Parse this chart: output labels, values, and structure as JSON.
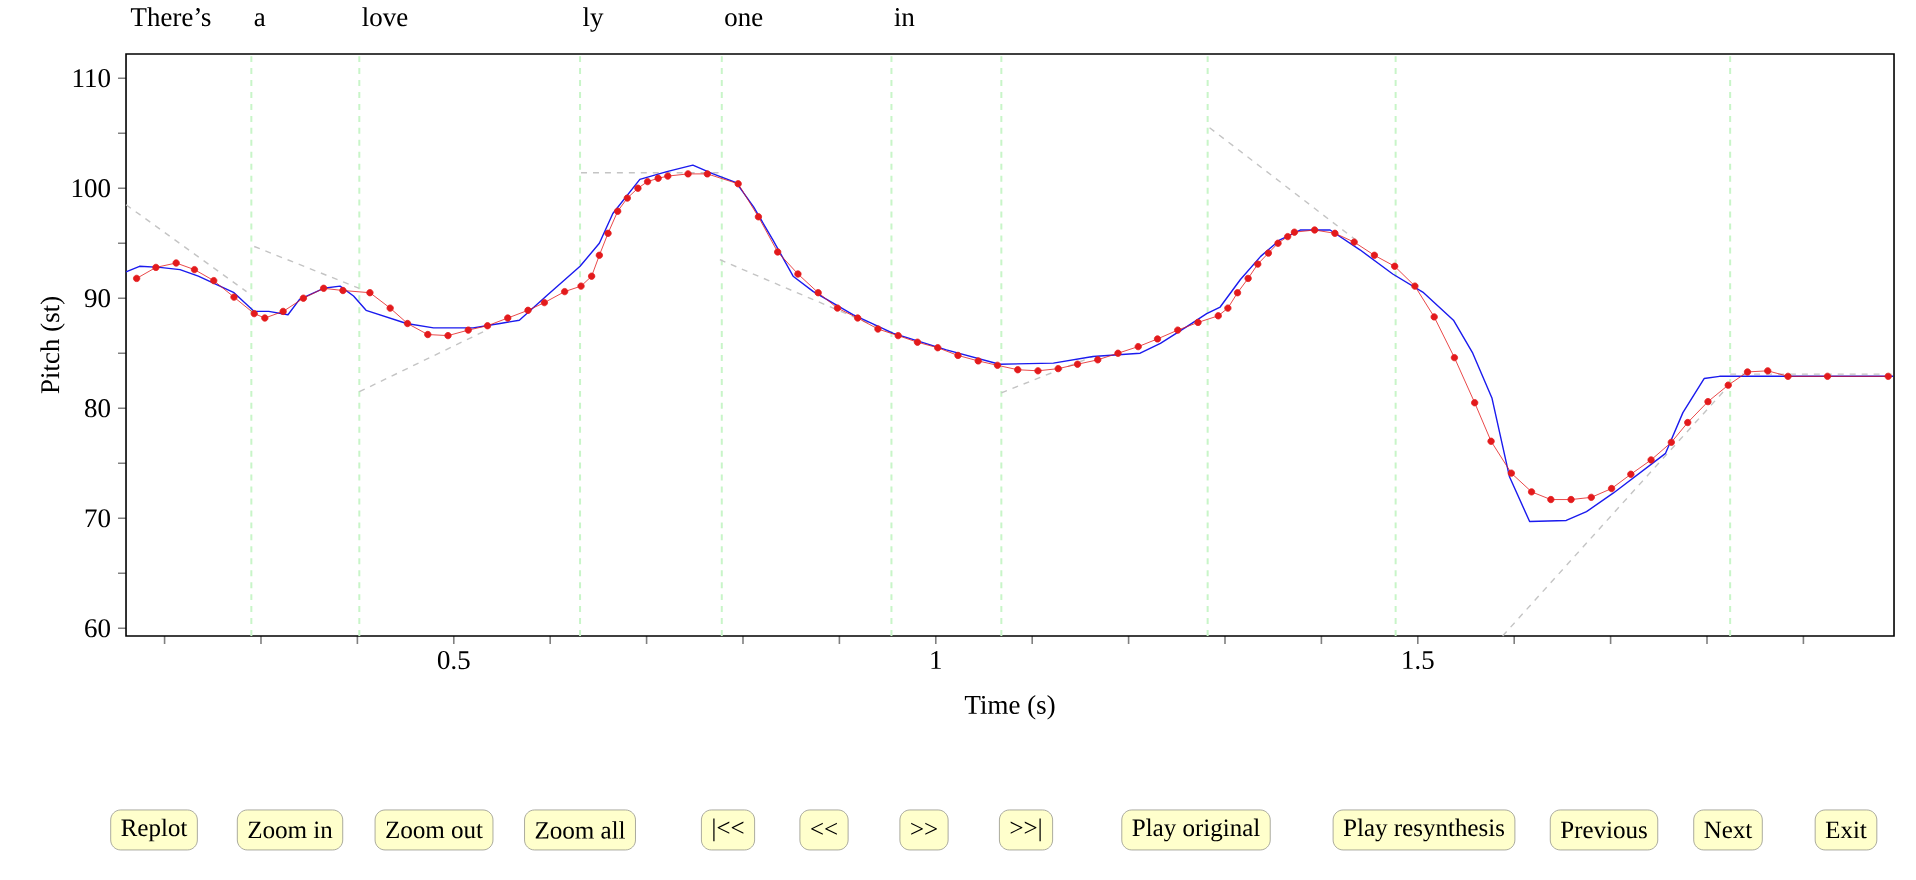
{
  "chart_data": {
    "type": "line",
    "xlabel": "Time (s)",
    "ylabel": "Pitch (st)",
    "xlim": [
      0.16,
      1.994
    ],
    "ylim": [
      59.3,
      112.2
    ],
    "xticks": [
      {
        "value": 0.2,
        "label": null
      },
      {
        "value": 0.3,
        "label": null
      },
      {
        "value": 0.4,
        "label": null
      },
      0.5,
      {
        "value": 0.6,
        "label": null
      },
      {
        "value": 0.7,
        "label": null
      },
      {
        "value": 0.8,
        "label": null
      },
      {
        "value": 0.9,
        "label": null
      },
      1,
      {
        "value": 1.1,
        "label": null
      },
      {
        "value": 1.2,
        "label": null
      },
      {
        "value": 1.3,
        "label": null
      },
      {
        "value": 1.4,
        "label": null
      },
      1.5,
      {
        "value": 1.6,
        "label": null
      },
      {
        "value": 1.7,
        "label": null
      },
      {
        "value": 1.8,
        "label": null
      },
      {
        "value": 1.9,
        "label": null
      }
    ],
    "yticks": [
      60,
      {
        "value": 65,
        "label": null
      },
      70,
      {
        "value": 75,
        "label": null
      },
      80,
      {
        "value": 85,
        "label": null
      },
      90,
      {
        "value": 95,
        "label": null
      },
      100,
      {
        "value": 105,
        "label": null
      },
      110
    ],
    "series": [
      {
        "type": "line",
        "color": "#c4c4c4",
        "line_style": "dashed",
        "marker": "none",
        "x": [
          0.16,
          0.285
        ],
        "values": [
          98.5,
          90.6
        ]
      },
      {
        "type": "line",
        "color": "#c4c4c4",
        "line_style": "dashed",
        "marker": "none",
        "x": [
          0.293,
          0.402
        ],
        "values": [
          94.7,
          90.9
        ]
      },
      {
        "type": "line",
        "color": "#c4c4c4",
        "line_style": "dashed",
        "marker": "none",
        "x": [
          0.402,
          0.534
        ],
        "values": [
          81.5,
          87.1
        ]
      },
      {
        "type": "line",
        "color": "#c4c4c4",
        "line_style": "dashed",
        "marker": "none",
        "x": [
          0.632,
          0.776
        ],
        "values": [
          101.4,
          101.4
        ]
      },
      {
        "type": "line",
        "color": "#c4c4c4",
        "line_style": "dashed",
        "marker": "none",
        "x": [
          0.776,
          0.963
        ],
        "values": [
          93.5,
          86.5
        ]
      },
      {
        "type": "line",
        "color": "#c4c4c4",
        "line_style": "dashed",
        "marker": "none",
        "x": [
          1.068,
          1.163
        ],
        "values": [
          81.4,
          84.7
        ]
      },
      {
        "type": "line",
        "color": "#c4c4c4",
        "line_style": "dashed",
        "marker": "none",
        "x": [
          1.284,
          1.44
        ],
        "values": [
          105.5,
          95.0
        ]
      },
      {
        "type": "line",
        "color": "#c4c4c4",
        "line_style": "dashed",
        "marker": "none",
        "x": [
          1.588,
          1.822
        ],
        "values": [
          59.3,
          82.0
        ]
      },
      {
        "type": "line",
        "color": "#c4c4c4",
        "line_style": "dashed",
        "marker": "none",
        "x": [
          1.824,
          1.994
        ],
        "values": [
          83.1,
          83.1
        ]
      },
      {
        "type": "line",
        "color": "#1a1aee",
        "line_style": "solid",
        "marker": "none",
        "x": [
          0.16,
          0.174,
          0.195,
          0.216,
          0.235,
          0.272,
          0.293,
          0.308,
          0.328,
          0.34,
          0.365,
          0.382,
          0.396,
          0.409,
          0.451,
          0.479,
          0.52,
          0.548,
          0.568,
          0.596,
          0.631,
          0.651,
          0.665,
          0.693,
          0.721,
          0.748,
          0.769,
          0.793,
          0.811,
          0.831,
          0.852,
          0.873,
          0.914,
          0.956,
          1.011,
          1.066,
          1.122,
          1.163,
          1.212,
          1.233,
          1.26,
          1.281,
          1.295,
          1.316,
          1.337,
          1.357,
          1.378,
          1.409,
          1.44,
          1.474,
          1.506,
          1.537,
          1.557,
          1.577,
          1.595,
          1.616,
          1.654,
          1.675,
          1.703,
          1.757,
          1.775,
          1.797,
          1.813,
          1.993
        ],
        "values": [
          92.4,
          92.9,
          92.8,
          92.6,
          92.0,
          90.5,
          88.8,
          88.8,
          88.5,
          89.9,
          90.9,
          91.1,
          90.2,
          88.9,
          87.7,
          87.3,
          87.3,
          87.7,
          88.0,
          90.2,
          92.9,
          95.0,
          97.7,
          100.8,
          101.5,
          102.1,
          101.3,
          100.5,
          98.3,
          95.3,
          92.0,
          90.6,
          88.5,
          86.8,
          85.3,
          84.0,
          84.1,
          84.7,
          85.0,
          85.9,
          87.4,
          88.6,
          89.2,
          91.7,
          93.8,
          95.3,
          96.2,
          96.2,
          94.4,
          92.2,
          90.5,
          88.0,
          85.0,
          80.9,
          73.8,
          69.7,
          69.8,
          70.6,
          72.3,
          75.9,
          79.6,
          82.7,
          82.9,
          82.9
        ]
      },
      {
        "type": "line",
        "color": "#e31a1c",
        "line_style": "solid",
        "marker": "circle",
        "x": [
          0.171,
          0.191,
          0.212,
          0.231,
          0.251,
          0.272,
          0.293,
          0.304,
          0.323,
          0.344,
          0.365,
          0.385,
          0.413,
          0.434,
          0.452,
          0.473,
          0.494,
          0.515,
          0.535,
          0.556,
          0.577,
          0.594,
          0.615,
          0.632,
          0.643,
          0.651,
          0.66,
          0.67,
          0.68,
          0.691,
          0.701,
          0.712,
          0.722,
          0.743,
          0.763,
          0.795,
          0.816,
          0.836,
          0.857,
          0.878,
          0.898,
          0.919,
          0.94,
          0.961,
          0.981,
          1.002,
          1.023,
          1.044,
          1.064,
          1.085,
          1.106,
          1.127,
          1.147,
          1.168,
          1.189,
          1.21,
          1.23,
          1.251,
          1.272,
          1.293,
          1.303,
          1.313,
          1.324,
          1.334,
          1.345,
          1.355,
          1.365,
          1.372,
          1.393,
          1.414,
          1.434,
          1.455,
          1.476,
          1.497,
          1.517,
          1.538,
          1.559,
          1.576,
          1.597,
          1.618,
          1.638,
          1.659,
          1.68,
          1.701,
          1.721,
          1.742,
          1.763,
          1.78,
          1.801,
          1.822,
          1.842,
          1.863,
          1.884,
          1.925,
          1.988
        ],
        "values": [
          91.8,
          92.8,
          93.2,
          92.6,
          91.6,
          90.1,
          88.6,
          88.2,
          88.8,
          90.0,
          90.9,
          90.7,
          90.5,
          89.1,
          87.7,
          86.7,
          86.6,
          87.1,
          87.5,
          88.2,
          88.9,
          89.6,
          90.6,
          91.1,
          92.0,
          93.9,
          95.9,
          97.9,
          99.1,
          100.0,
          100.6,
          100.9,
          101.1,
          101.3,
          101.3,
          100.4,
          97.4,
          94.2,
          92.2,
          90.5,
          89.1,
          88.2,
          87.2,
          86.6,
          86.0,
          85.5,
          84.8,
          84.3,
          83.9,
          83.5,
          83.4,
          83.6,
          84.0,
          84.4,
          85.0,
          85.6,
          86.3,
          87.1,
          87.8,
          88.4,
          89.1,
          90.5,
          91.8,
          93.1,
          94.1,
          95.0,
          95.6,
          96.0,
          96.2,
          95.9,
          95.1,
          93.9,
          92.9,
          91.1,
          88.3,
          84.6,
          80.5,
          77.0,
          74.1,
          72.4,
          71.7,
          71.7,
          71.9,
          72.7,
          74.0,
          75.3,
          76.9,
          78.7,
          80.6,
          82.1,
          83.3,
          83.4,
          82.9,
          82.9,
          82.9
        ]
      }
    ],
    "ref_lines": [
      {
        "axis": "x",
        "value": 0.29,
        "label": "a",
        "color": "#c8f5c8",
        "line_style": "dashed"
      },
      {
        "axis": "x",
        "value": 0.402,
        "label": "love",
        "color": "#c8f5c8",
        "line_style": "dashed"
      },
      {
        "axis": "x",
        "value": 0.631,
        "label": "ly",
        "color": "#c8f5c8",
        "line_style": "dashed"
      },
      {
        "axis": "x",
        "value": 0.778,
        "label": "one",
        "color": "#c8f5c8",
        "line_style": "dashed"
      },
      {
        "axis": "x",
        "value": 0.954,
        "label": "in",
        "color": "#c8f5c8",
        "line_style": "dashed"
      },
      {
        "axis": "x",
        "value": 1.068,
        "color": "#c8f5c8",
        "line_style": "dashed"
      },
      {
        "axis": "x",
        "value": 1.282,
        "color": "#c8f5c8",
        "line_style": "dashed"
      },
      {
        "axis": "x",
        "value": 1.477,
        "color": "#c8f5c8",
        "line_style": "dashed"
      },
      {
        "axis": "x",
        "value": 1.824,
        "color": "#c8f5c8",
        "line_style": "dashed"
      }
    ],
    "annotations": [
      "There’s",
      "Replot",
      "Zoom in",
      "Zoom out",
      "Zoom all",
      "|<<",
      "<<",
      ">>",
      ">>|",
      "Play original",
      "Play resynthesis",
      "Previous",
      "Next",
      "Exit"
    ]
  }
}
